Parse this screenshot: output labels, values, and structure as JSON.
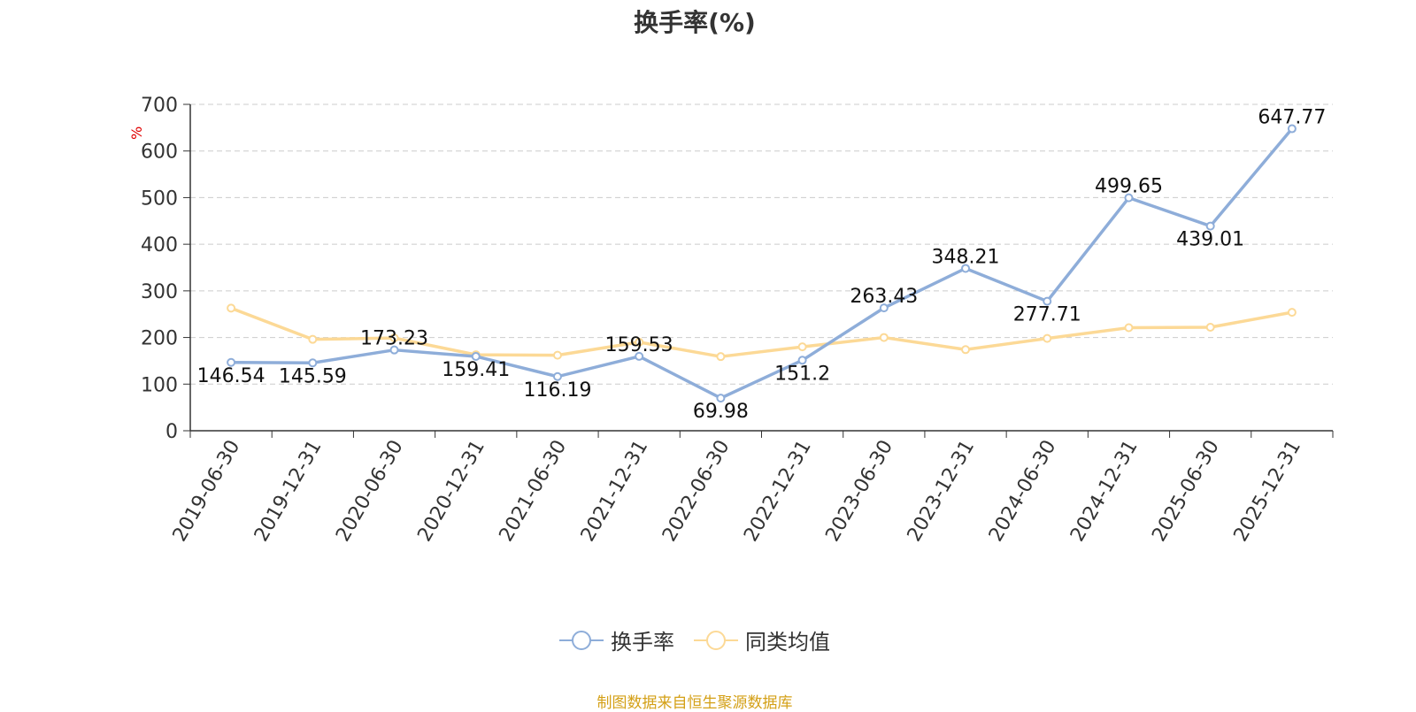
{
  "chart_data": {
    "type": "line",
    "title": "换手率(%)",
    "ylabel": "%",
    "ylim": [
      0,
      700
    ],
    "yticks": [
      0,
      100,
      200,
      300,
      400,
      500,
      600,
      700
    ],
    "grid": true,
    "legend_position": "bottom",
    "x": [
      "2019-06-30",
      "2019-12-31",
      "2020-06-30",
      "2020-12-31",
      "2021-06-30",
      "2021-12-31",
      "2022-06-30",
      "2022-12-31",
      "2023-06-30",
      "2023-12-31",
      "2024-06-30",
      "2024-12-31",
      "2025-06-30",
      "2025-12-31"
    ],
    "series": [
      {
        "name": "换手率",
        "color": "#8eadd9",
        "values": [
          146.54,
          145.59,
          173.23,
          159.41,
          116.19,
          159.53,
          69.98,
          151.2,
          263.43,
          348.21,
          277.71,
          499.65,
          439.01,
          647.77
        ],
        "labels": [
          "146.54",
          "145.59",
          "173.23",
          "159.41",
          "116.19",
          "159.53",
          "69.98",
          "151.2",
          "263.43",
          "348.21",
          "277.71",
          "499.65",
          "439.01",
          "647.77"
        ]
      },
      {
        "name": "同类均值",
        "color": "#fcd996",
        "values": [
          263,
          196,
          199,
          163,
          162,
          190,
          159,
          180,
          200,
          174,
          198,
          221,
          222,
          254
        ]
      }
    ]
  },
  "source_note": "制图数据来自恒生聚源数据库"
}
